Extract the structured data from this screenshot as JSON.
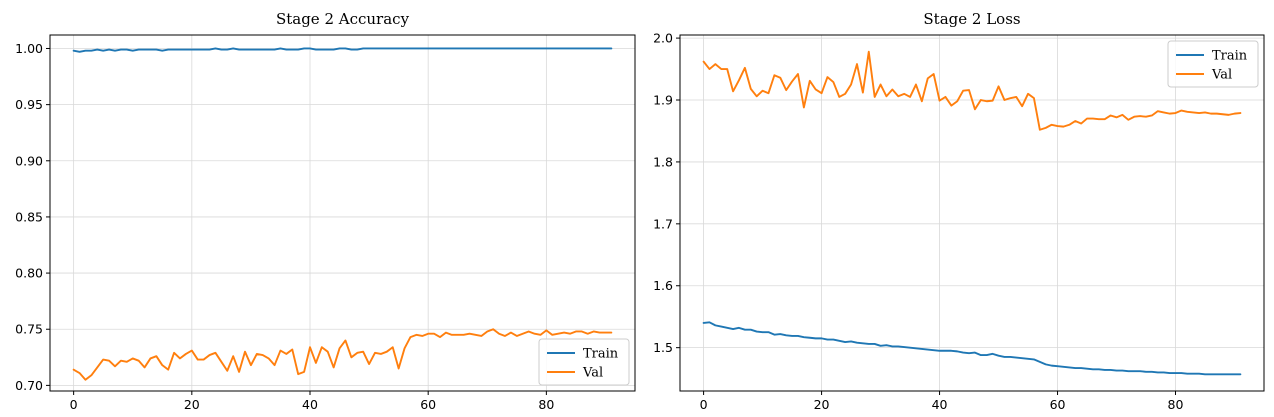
{
  "chart_data": [
    {
      "type": "line",
      "title": "Stage 2 Accuracy",
      "xlabel": "",
      "ylabel": "",
      "xlim": [
        -4,
        95
      ],
      "ylim": [
        0.695,
        1.012
      ],
      "xticks": [
        0,
        20,
        40,
        60,
        80
      ],
      "xtick_labels": [
        "0",
        "20",
        "40",
        "60",
        "80"
      ],
      "yticks": [
        0.7,
        0.75,
        0.8,
        0.85,
        0.9,
        0.95,
        1.0
      ],
      "ytick_labels": [
        "0.70",
        "0.75",
        "0.80",
        "0.85",
        "0.90",
        "0.95",
        "1.00"
      ],
      "grid": true,
      "legend": "lower-right",
      "series": [
        {
          "name": "Train",
          "color": "#1f77b4",
          "values": [
            0.998,
            0.997,
            0.998,
            0.998,
            0.999,
            0.998,
            0.999,
            0.998,
            0.999,
            0.999,
            0.998,
            0.999,
            0.999,
            0.999,
            0.999,
            0.998,
            0.999,
            0.999,
            0.999,
            0.999,
            0.999,
            0.999,
            0.999,
            0.999,
            1.0,
            0.999,
            0.999,
            1.0,
            0.999,
            0.999,
            0.999,
            0.999,
            0.999,
            0.999,
            0.999,
            1.0,
            0.999,
            0.999,
            0.999,
            1.0,
            1.0,
            0.999,
            0.999,
            0.999,
            0.999,
            1.0,
            1.0,
            0.999,
            0.999,
            1.0,
            1.0,
            1.0,
            1.0,
            1.0,
            1.0,
            1.0,
            1.0,
            1.0,
            1.0,
            1.0,
            1.0,
            1.0,
            1.0,
            1.0,
            1.0,
            1.0,
            1.0,
            1.0,
            1.0,
            1.0,
            1.0,
            1.0,
            1.0,
            1.0,
            1.0,
            1.0,
            1.0,
            1.0,
            1.0,
            1.0,
            1.0,
            1.0,
            1.0,
            1.0,
            1.0,
            1.0,
            1.0,
            1.0,
            1.0,
            1.0,
            1.0,
            1.0
          ]
        },
        {
          "name": "Val",
          "color": "#ff7f0e",
          "values": [
            0.714,
            0.711,
            0.705,
            0.709,
            0.716,
            0.723,
            0.722,
            0.717,
            0.722,
            0.721,
            0.724,
            0.722,
            0.716,
            0.724,
            0.726,
            0.718,
            0.714,
            0.729,
            0.724,
            0.728,
            0.731,
            0.723,
            0.723,
            0.727,
            0.729,
            0.721,
            0.713,
            0.726,
            0.712,
            0.73,
            0.718,
            0.728,
            0.727,
            0.724,
            0.718,
            0.731,
            0.728,
            0.732,
            0.71,
            0.712,
            0.734,
            0.72,
            0.734,
            0.73,
            0.716,
            0.733,
            0.74,
            0.725,
            0.729,
            0.73,
            0.719,
            0.729,
            0.728,
            0.73,
            0.734,
            0.715,
            0.733,
            0.743,
            0.745,
            0.744,
            0.746,
            0.746,
            0.743,
            0.747,
            0.745,
            0.745,
            0.745,
            0.746,
            0.745,
            0.744,
            0.748,
            0.75,
            0.746,
            0.744,
            0.747,
            0.744,
            0.746,
            0.748,
            0.746,
            0.745,
            0.749,
            0.745,
            0.746,
            0.747,
            0.746,
            0.748,
            0.748,
            0.746,
            0.748,
            0.747,
            0.747,
            0.747
          ]
        }
      ]
    },
    {
      "type": "line",
      "title": "Stage 2 Loss",
      "xlabel": "",
      "ylabel": "",
      "xlim": [
        -4,
        95
      ],
      "ylim": [
        1.43,
        2.005
      ],
      "xticks": [
        0,
        20,
        40,
        60,
        80
      ],
      "xtick_labels": [
        "0",
        "20",
        "40",
        "60",
        "80"
      ],
      "yticks": [
        1.5,
        1.6,
        1.7,
        1.8,
        1.9,
        2.0
      ],
      "ytick_labels": [
        "1.5",
        "1.6",
        "1.7",
        "1.8",
        "1.9",
        "2.0"
      ],
      "grid": true,
      "legend": "upper-right",
      "series": [
        {
          "name": "Train",
          "color": "#1f77b4",
          "values": [
            1.54,
            1.541,
            1.536,
            1.534,
            1.532,
            1.53,
            1.532,
            1.529,
            1.529,
            1.526,
            1.525,
            1.525,
            1.521,
            1.522,
            1.52,
            1.519,
            1.519,
            1.517,
            1.516,
            1.515,
            1.515,
            1.513,
            1.513,
            1.511,
            1.509,
            1.51,
            1.508,
            1.507,
            1.506,
            1.506,
            1.503,
            1.504,
            1.502,
            1.502,
            1.501,
            1.5,
            1.499,
            1.498,
            1.497,
            1.496,
            1.495,
            1.495,
            1.495,
            1.494,
            1.492,
            1.491,
            1.492,
            1.488,
            1.488,
            1.49,
            1.487,
            1.485,
            1.485,
            1.484,
            1.483,
            1.482,
            1.481,
            1.477,
            1.473,
            1.471,
            1.47,
            1.469,
            1.468,
            1.467,
            1.467,
            1.466,
            1.465,
            1.465,
            1.464,
            1.464,
            1.463,
            1.463,
            1.462,
            1.462,
            1.462,
            1.461,
            1.461,
            1.46,
            1.46,
            1.459,
            1.459,
            1.459,
            1.458,
            1.458,
            1.458,
            1.457,
            1.457,
            1.457,
            1.457,
            1.457,
            1.457,
            1.457
          ]
        },
        {
          "name": "Val",
          "color": "#ff7f0e",
          "values": [
            1.962,
            1.95,
            1.958,
            1.95,
            1.95,
            1.914,
            1.932,
            1.952,
            1.918,
            1.906,
            1.915,
            1.911,
            1.94,
            1.936,
            1.916,
            1.93,
            1.942,
            1.888,
            1.931,
            1.917,
            1.911,
            1.937,
            1.929,
            1.905,
            1.91,
            1.925,
            1.958,
            1.912,
            1.978,
            1.905,
            1.925,
            1.906,
            1.917,
            1.906,
            1.91,
            1.905,
            1.925,
            1.898,
            1.935,
            1.942,
            1.899,
            1.905,
            1.891,
            1.898,
            1.915,
            1.916,
            1.885,
            1.9,
            1.898,
            1.899,
            1.922,
            1.9,
            1.903,
            1.905,
            1.89,
            1.91,
            1.903,
            1.852,
            1.855,
            1.86,
            1.858,
            1.857,
            1.86,
            1.866,
            1.862,
            1.87,
            1.87,
            1.869,
            1.869,
            1.875,
            1.872,
            1.876,
            1.868,
            1.873,
            1.874,
            1.873,
            1.875,
            1.882,
            1.88,
            1.878,
            1.879,
            1.883,
            1.881,
            1.88,
            1.879,
            1.88,
            1.878,
            1.878,
            1.877,
            1.876,
            1.878,
            1.879
          ]
        }
      ]
    }
  ]
}
